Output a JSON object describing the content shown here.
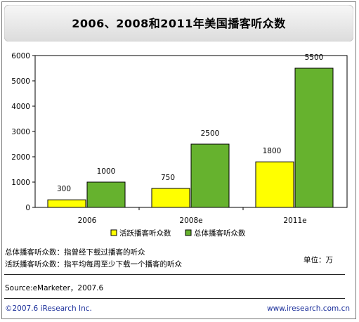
{
  "chart_data": {
    "type": "bar",
    "title": "2006、2008和2011年美国播客听众数",
    "categories": [
      "2006",
      "2008e",
      "2011e"
    ],
    "series": [
      {
        "name": "活跃播客听众数",
        "values": [
          300,
          750,
          1800
        ],
        "color": "#ffff00"
      },
      {
        "name": "总体播客听众数",
        "values": [
          1000,
          2500,
          5500
        ],
        "color": "#66b22e"
      }
    ],
    "ylim": [
      0,
      6000
    ],
    "yticks": [
      "0",
      "1000",
      "2000",
      "3000",
      "4000",
      "5000",
      "6000"
    ],
    "grid": false,
    "legend_position": "bottom"
  },
  "notes": {
    "total_def": "总体播客听众数：指曾经下载过播客的听众",
    "active_def": "活跃播客听众数：指平均每周至少下载一个播客的听众",
    "unit": "单位：万"
  },
  "source": "Source:eMarketer，2007.6",
  "footer": {
    "copyright": "©2007.6 iResearch Inc.",
    "website": "www.iresearch.com.cn"
  },
  "colors": {
    "border": "#7a7a7a",
    "footer_text": "#1a2e9a",
    "title_band": "#e6e6e6"
  }
}
